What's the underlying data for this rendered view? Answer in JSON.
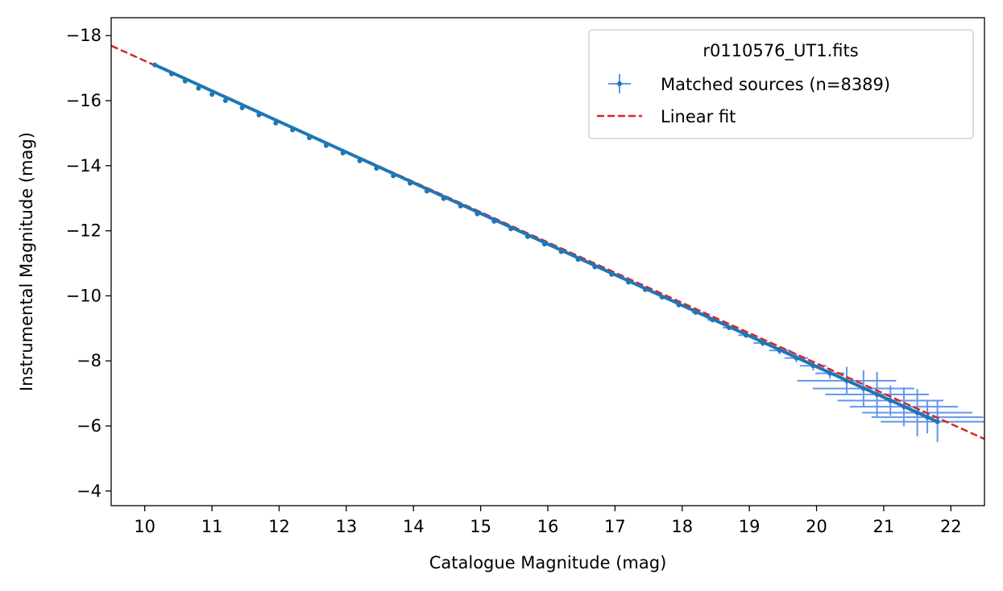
{
  "chart_data": {
    "type": "scatter",
    "xlabel": "Catalogue Magnitude (mag)",
    "ylabel": "Instrumental Magnitude (mag)",
    "xlim": [
      9.5,
      22.5
    ],
    "ylim": [
      -3.55,
      -18.55
    ],
    "y_inverted": true,
    "x_ticks": [
      10,
      11,
      12,
      13,
      14,
      15,
      16,
      17,
      18,
      19,
      20,
      21,
      22
    ],
    "x_tick_labels": [
      "10",
      "11",
      "12",
      "13",
      "14",
      "15",
      "16",
      "17",
      "18",
      "19",
      "20",
      "21",
      "22"
    ],
    "y_ticks": [
      -4,
      -6,
      -8,
      -10,
      -12,
      -14,
      -16,
      -18
    ],
    "y_tick_labels": [
      "−4",
      "−6",
      "−8",
      "−10",
      "−12",
      "−14",
      "−16",
      "−18"
    ],
    "grid": false,
    "legend": {
      "placement": "upper right",
      "title": "r0110576_UT1.fits",
      "entries": [
        "Matched sources (n=8389)",
        "Linear fit"
      ]
    },
    "colors": {
      "points": "#1f77b4",
      "errorbars": "#6495ed",
      "fit": "#d62728"
    },
    "series": [
      {
        "name": "Matched sources (n=8389)",
        "style": "errorbar",
        "points": [
          [
            10.15,
            -17.1
          ],
          [
            10.4,
            -16.82
          ],
          [
            10.6,
            -16.6
          ],
          [
            10.8,
            -16.38
          ],
          [
            11.0,
            -16.19
          ],
          [
            11.2,
            -16.0
          ],
          [
            11.45,
            -15.78
          ],
          [
            11.7,
            -15.56
          ],
          [
            11.95,
            -15.31
          ],
          [
            12.2,
            -15.1
          ],
          [
            12.45,
            -14.86
          ],
          [
            12.7,
            -14.62
          ],
          [
            12.95,
            -14.39
          ],
          [
            13.2,
            -14.15
          ],
          [
            13.45,
            -13.92
          ],
          [
            13.7,
            -13.69
          ],
          [
            13.95,
            -13.46
          ],
          [
            14.2,
            -13.22
          ],
          [
            14.45,
            -12.99
          ],
          [
            14.7,
            -12.76
          ],
          [
            14.95,
            -12.52
          ],
          [
            15.2,
            -12.29
          ],
          [
            15.45,
            -12.06
          ],
          [
            15.7,
            -11.82
          ],
          [
            15.95,
            -11.59
          ],
          [
            16.2,
            -11.36
          ],
          [
            16.45,
            -11.12
          ],
          [
            16.7,
            -10.89
          ],
          [
            16.95,
            -10.66
          ],
          [
            17.2,
            -10.42
          ],
          [
            17.45,
            -10.19
          ],
          [
            17.7,
            -9.96
          ],
          [
            17.95,
            -9.72
          ],
          [
            18.2,
            -9.49
          ],
          [
            18.45,
            -9.26
          ],
          [
            18.7,
            -9.02
          ],
          [
            18.95,
            -8.79
          ],
          [
            19.2,
            -8.55
          ],
          [
            19.45,
            -8.32
          ],
          [
            19.7,
            -8.09
          ],
          [
            19.95,
            -7.85
          ],
          [
            20.2,
            -7.62
          ],
          [
            20.45,
            -7.39
          ],
          [
            20.7,
            -7.15
          ],
          [
            20.9,
            -6.97
          ],
          [
            21.1,
            -6.78
          ],
          [
            21.3,
            -6.59
          ],
          [
            21.5,
            -6.41
          ],
          [
            21.65,
            -6.27
          ],
          [
            21.8,
            -6.13
          ]
        ]
      },
      {
        "name": "Linear fit",
        "style": "dashed-line",
        "x": [
          9.5,
          22.5
        ],
        "y": [
          -17.69,
          -5.6
        ]
      }
    ]
  }
}
